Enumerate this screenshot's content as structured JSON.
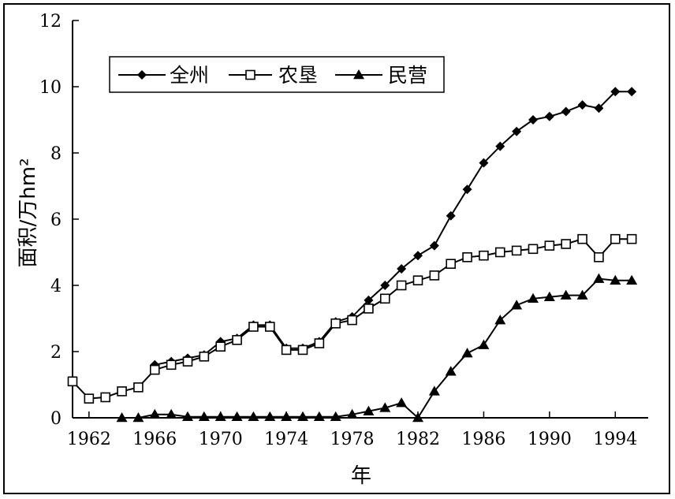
{
  "chart_data": {
    "type": "line",
    "xlabel": "年",
    "ylabel": "面积/万hm²",
    "ylim": [
      0,
      12
    ],
    "xlim": [
      1961,
      1996
    ],
    "y_ticks": [
      "0",
      "2",
      "4",
      "6",
      "8",
      "10",
      "12"
    ],
    "x_ticks": [
      "1962",
      "1966",
      "1970",
      "1974",
      "1978",
      "1982",
      "1986",
      "1990",
      "1994"
    ],
    "grid": false,
    "legend_position": "top-left",
    "series": [
      {
        "name": "全州",
        "marker": "diamond-filled",
        "color": "#000000",
        "x": [
          1966,
          1967,
          1968,
          1969,
          1970,
          1971,
          1972,
          1973,
          1974,
          1975,
          1976,
          1977,
          1978,
          1979,
          1980,
          1981,
          1982,
          1983,
          1984,
          1985,
          1986,
          1987,
          1988,
          1989,
          1990,
          1991,
          1992,
          1993,
          1994,
          1995
        ],
        "values": [
          1.6,
          1.7,
          1.8,
          1.9,
          2.3,
          2.4,
          2.8,
          2.8,
          2.1,
          2.1,
          2.3,
          2.9,
          3.05,
          3.55,
          4.0,
          4.5,
          4.9,
          5.2,
          6.1,
          6.9,
          7.7,
          8.2,
          8.65,
          9.0,
          9.1,
          9.25,
          9.45,
          9.35,
          9.85,
          9.85
        ]
      },
      {
        "name": "农垦",
        "marker": "square-open",
        "color": "#000000",
        "x": [
          1961,
          1962,
          1963,
          1964,
          1965,
          1966,
          1967,
          1968,
          1969,
          1970,
          1971,
          1972,
          1973,
          1974,
          1975,
          1976,
          1977,
          1978,
          1979,
          1980,
          1981,
          1982,
          1983,
          1984,
          1985,
          1986,
          1987,
          1988,
          1989,
          1990,
          1991,
          1992,
          1993,
          1994,
          1995
        ],
        "values": [
          1.1,
          0.58,
          0.62,
          0.8,
          0.92,
          1.45,
          1.6,
          1.7,
          1.85,
          2.15,
          2.35,
          2.75,
          2.75,
          2.05,
          2.05,
          2.25,
          2.85,
          2.95,
          3.3,
          3.6,
          4.0,
          4.15,
          4.3,
          4.65,
          4.85,
          4.9,
          5.0,
          5.05,
          5.1,
          5.2,
          5.25,
          5.4,
          4.85,
          5.4,
          5.4
        ]
      },
      {
        "name": "民营",
        "marker": "triangle-filled",
        "color": "#000000",
        "x": [
          1964,
          1965,
          1966,
          1967,
          1968,
          1969,
          1970,
          1971,
          1972,
          1973,
          1974,
          1975,
          1976,
          1977,
          1978,
          1979,
          1980,
          1981,
          1982,
          1983,
          1984,
          1985,
          1986,
          1987,
          1988,
          1989,
          1990,
          1991,
          1992,
          1993,
          1994,
          1995
        ],
        "values": [
          0.0,
          0.0,
          0.1,
          0.1,
          0.03,
          0.03,
          0.03,
          0.03,
          0.03,
          0.03,
          0.03,
          0.03,
          0.03,
          0.03,
          0.1,
          0.2,
          0.3,
          0.45,
          0.0,
          0.8,
          1.4,
          1.95,
          2.2,
          2.95,
          3.4,
          3.6,
          3.65,
          3.7,
          3.7,
          4.2,
          4.15,
          4.15
        ]
      }
    ]
  }
}
